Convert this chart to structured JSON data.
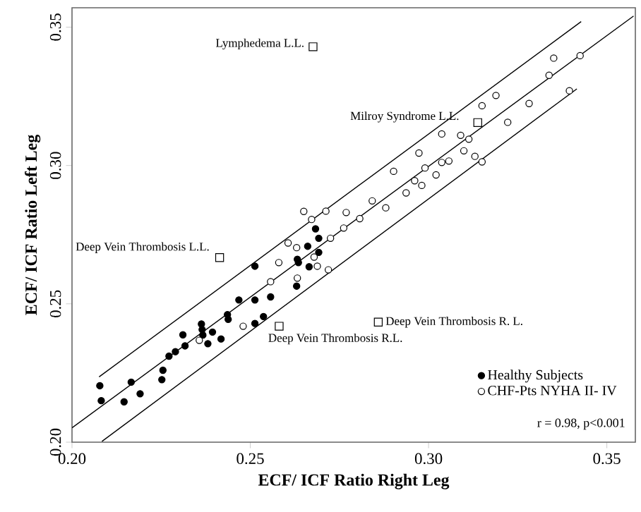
{
  "chart_data": {
    "type": "scatter",
    "xlabel": "ECF/ ICF Ratio Right Leg",
    "ylabel": "ECF/ ICF Ratio Left Leg",
    "xlim": [
      0.2,
      0.358
    ],
    "ylim": [
      0.2,
      0.357
    ],
    "xticks": [
      {
        "value": 0.2,
        "label": "0.20"
      },
      {
        "value": 0.25,
        "label": "0.25"
      },
      {
        "value": 0.3,
        "label": "0.30"
      },
      {
        "value": 0.35,
        "label": "0.35"
      }
    ],
    "yticks": [
      {
        "value": 0.2,
        "label": "0.20"
      },
      {
        "value": 0.25,
        "label": "0.25"
      },
      {
        "value": 0.3,
        "label": "0.30"
      },
      {
        "value": 0.35,
        "label": "0.35"
      }
    ],
    "grid": false,
    "legend": "bottom right",
    "marker": "circle",
    "series": [
      {
        "name": "Healthy Subjects",
        "color": "#000000",
        "x": [
          0.2078,
          0.2082,
          0.2146,
          0.2166,
          0.2191,
          0.2252,
          0.2255,
          0.2272,
          0.229,
          0.2311,
          0.2317,
          0.2363,
          0.2365,
          0.2367,
          0.2381,
          0.2394,
          0.2418,
          0.2436,
          0.2438,
          0.2468,
          0.2513,
          0.2513,
          0.2513,
          0.2533,
          0.2537,
          0.2557,
          0.263,
          0.2632,
          0.2635,
          0.2661,
          0.2665,
          0.2683,
          0.2692,
          0.2692
        ],
        "values": [
          0.2204,
          0.215,
          0.2146,
          0.2217,
          0.2175,
          0.2226,
          0.226,
          0.2311,
          0.2327,
          0.2388,
          0.2348,
          0.2427,
          0.2407,
          0.2387,
          0.2356,
          0.2398,
          0.2373,
          0.2461,
          0.2444,
          0.2514,
          0.2636,
          0.2514,
          0.2429,
          null,
          0.2454,
          0.2525,
          0.2564,
          0.2661,
          0.2649,
          0.2708,
          0.2634,
          0.2771,
          0.2737,
          0.2686
        ]
      },
      {
        "name": "CHF-Pts NYHA II- IV",
        "color": "#000000",
        "x": [
          0.2357,
          0.248,
          0.2557,
          0.258,
          0.2606,
          0.263,
          0.2632,
          0.265,
          0.2672,
          0.2679,
          0.2688,
          0.2719,
          0.2712,
          0.2725,
          0.2762,
          0.2769,
          0.2807,
          0.2842,
          0.288,
          0.2902,
          0.2937,
          0.2961,
          0.2973,
          0.2981,
          0.299,
          0.3021,
          0.3037,
          0.3037,
          0.3057,
          0.309,
          0.3099,
          0.3113,
          0.313,
          0.315,
          0.315,
          0.3189,
          0.3222,
          0.3282,
          0.3338,
          0.3351,
          0.3395,
          0.3425
        ],
        "values": [
          0.2368,
          0.2419,
          0.258,
          0.2649,
          0.272,
          0.2703,
          0.2593,
          0.2834,
          0.2805,
          0.2669,
          0.2636,
          0.2623,
          0.2835,
          0.2737,
          0.2774,
          0.283,
          0.2808,
          0.2872,
          0.2847,
          0.2979,
          0.2901,
          0.2945,
          0.3045,
          0.2928,
          0.2991,
          0.2966,
          0.3011,
          0.3114,
          0.3016,
          0.3109,
          0.3053,
          0.3095,
          0.3033,
          0.3013,
          0.3216,
          0.3253,
          0.3156,
          0.3224,
          0.3326,
          0.3388,
          0.327,
          0.3397
        ]
      },
      {
        "marker": "square",
        "color": "#000000",
        "x": [
          0.2676,
          0.2414,
          0.2581,
          0.2859,
          0.3138
        ],
        "values": [
          0.3429,
          0.2667,
          0.2419,
          0.2434,
          0.3155
        ]
      },
      {
        "type": "line",
        "marker": "none",
        "line_style": "solid",
        "color": "#000000",
        "x": [
          0.2,
          0.3575
        ],
        "values": [
          0.2052,
          0.354
        ]
      },
      {
        "type": "line",
        "marker": "none",
        "line_style": "solid",
        "color": "#000000",
        "x": [
          0.2076,
          0.3428
        ],
        "values": [
          0.2236,
          0.352
        ]
      },
      {
        "type": "line",
        "marker": "none",
        "line_style": "solid",
        "color": "#000000",
        "x": [
          0.2084,
          0.3416
        ],
        "values": [
          0.2003,
          0.3277
        ]
      }
    ],
    "annotations": [
      {
        "text": "Lymphedema L.L.",
        "x": 0.2676,
        "y": 0.3429
      },
      {
        "text": "Deep  Vein Thrombosis L.L.",
        "x": 0.2414,
        "y": 0.2667
      },
      {
        "text": "Deep  Vein Thrombosis R.L.",
        "x": 0.2581,
        "y": 0.2419
      },
      {
        "text": "Deep Vein Thrombosis R. L.",
        "x": 0.2859,
        "y": 0.2434
      },
      {
        "text": "Milroy Syndrome L.L.",
        "x": 0.3138,
        "y": 0.3155
      },
      "r = 0.98, p<0.001"
    ]
  }
}
